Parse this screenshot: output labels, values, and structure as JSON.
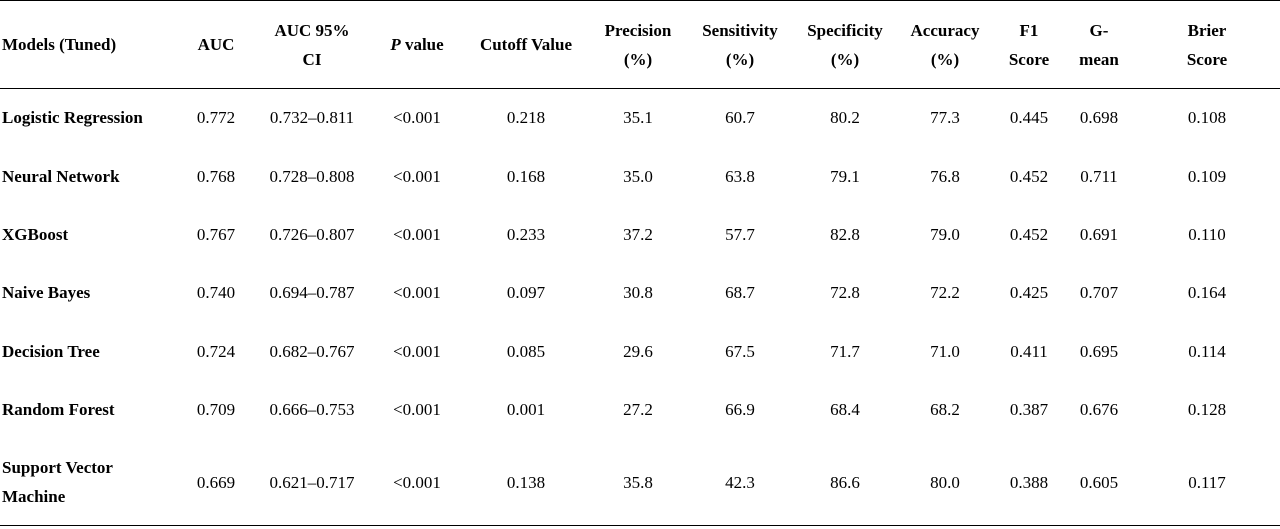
{
  "table": {
    "headers": [
      {
        "key": "model",
        "line1": "Models (Tuned)",
        "line2": ""
      },
      {
        "key": "auc",
        "line1": "AUC",
        "line2": ""
      },
      {
        "key": "auc_ci",
        "line1": "AUC 95%",
        "line2": "CI"
      },
      {
        "key": "p_value",
        "line1_italic": "P",
        "line1": " value",
        "line2": ""
      },
      {
        "key": "cutoff",
        "line1": "Cutoff Value",
        "line2": ""
      },
      {
        "key": "precision",
        "line1": "Precision",
        "line2": "(%)"
      },
      {
        "key": "sensitivity",
        "line1": "Sensitivity",
        "line2": "(%)"
      },
      {
        "key": "specificity",
        "line1": "Specificity",
        "line2": "(%)"
      },
      {
        "key": "accuracy",
        "line1": "Accuracy",
        "line2": "(%)"
      },
      {
        "key": "f1",
        "line1": "F1",
        "line2": "Score"
      },
      {
        "key": "gmean",
        "line1": "G-",
        "line2": "mean"
      },
      {
        "key": "brier",
        "line1": "Brier",
        "line2": "Score"
      }
    ],
    "rows": [
      {
        "model_line1": "Logistic Regression",
        "model_line2": "",
        "auc": "0.772",
        "auc_ci": "0.732–0.811",
        "p_value": "<0.001",
        "cutoff": "0.218",
        "precision": "35.1",
        "sensitivity": "60.7",
        "specificity": "80.2",
        "accuracy": "77.3",
        "f1": "0.445",
        "gmean": "0.698",
        "brier": "0.108"
      },
      {
        "model_line1": "Neural Network",
        "model_line2": "",
        "auc": "0.768",
        "auc_ci": "0.728–0.808",
        "p_value": "<0.001",
        "cutoff": "0.168",
        "precision": "35.0",
        "sensitivity": "63.8",
        "specificity": "79.1",
        "accuracy": "76.8",
        "f1": "0.452",
        "gmean": "0.711",
        "brier": "0.109"
      },
      {
        "model_line1": "XGBoost",
        "model_line2": "",
        "auc": "0.767",
        "auc_ci": "0.726–0.807",
        "p_value": "<0.001",
        "cutoff": "0.233",
        "precision": "37.2",
        "sensitivity": "57.7",
        "specificity": "82.8",
        "accuracy": "79.0",
        "f1": "0.452",
        "gmean": "0.691",
        "brier": "0.110"
      },
      {
        "model_line1": "Naive Bayes",
        "model_line2": "",
        "auc": "0.740",
        "auc_ci": "0.694–0.787",
        "p_value": "<0.001",
        "cutoff": "0.097",
        "precision": "30.8",
        "sensitivity": "68.7",
        "specificity": "72.8",
        "accuracy": "72.2",
        "f1": "0.425",
        "gmean": "0.707",
        "brier": "0.164"
      },
      {
        "model_line1": "Decision Tree",
        "model_line2": "",
        "auc": "0.724",
        "auc_ci": "0.682–0.767",
        "p_value": "<0.001",
        "cutoff": "0.085",
        "precision": "29.6",
        "sensitivity": "67.5",
        "specificity": "71.7",
        "accuracy": "71.0",
        "f1": "0.411",
        "gmean": "0.695",
        "brier": "0.114"
      },
      {
        "model_line1": "Random Forest",
        "model_line2": "",
        "auc": "0.709",
        "auc_ci": "0.666–0.753",
        "p_value": "<0.001",
        "cutoff": "0.001",
        "precision": "27.2",
        "sensitivity": "66.9",
        "specificity": "68.4",
        "accuracy": "68.2",
        "f1": "0.387",
        "gmean": "0.676",
        "brier": "0.128"
      },
      {
        "model_line1": "Support Vector",
        "model_line2": "Machine",
        "auc": "0.669",
        "auc_ci": "0.621–0.717",
        "p_value": "<0.001",
        "cutoff": "0.138",
        "precision": "35.8",
        "sensitivity": "42.3",
        "specificity": "86.6",
        "accuracy": "80.0",
        "f1": "0.388",
        "gmean": "0.605",
        "brier": "0.117"
      }
    ]
  }
}
